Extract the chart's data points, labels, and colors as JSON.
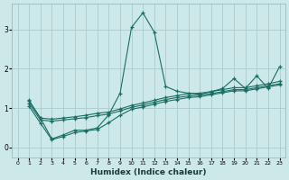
{
  "xlabel": "Humidex (Indice chaleur)",
  "bg_color": "#cce8e8",
  "line_color": "#1a6e64",
  "grid_color": "#aacccc",
  "xlim": [
    -0.5,
    23.5
  ],
  "ylim": [
    -0.25,
    3.65
  ],
  "xticks": [
    0,
    1,
    2,
    3,
    4,
    5,
    6,
    7,
    8,
    9,
    10,
    11,
    12,
    13,
    14,
    15,
    16,
    17,
    18,
    19,
    20,
    21,
    22,
    23
  ],
  "yticks": [
    0,
    1,
    2,
    3
  ],
  "series": [
    {
      "x": [
        1,
        2,
        3,
        4,
        5,
        6,
        7,
        8,
        9,
        10,
        11,
        12,
        13,
        14,
        15,
        16,
        17,
        18,
        19,
        20,
        21,
        22,
        23
      ],
      "y": [
        1.2,
        0.75,
        0.22,
        0.32,
        0.44,
        0.44,
        0.5,
        0.83,
        1.38,
        3.05,
        3.42,
        2.93,
        1.55,
        1.43,
        1.38,
        1.35,
        1.42,
        1.5,
        1.75,
        1.5,
        1.82,
        1.5,
        2.05
      ]
    },
    {
      "x": [
        1,
        2,
        3,
        4,
        5,
        6,
        7,
        8,
        9,
        10,
        11,
        12,
        13,
        14,
        15,
        16,
        17,
        18,
        19,
        20,
        21,
        22,
        23
      ],
      "y": [
        1.18,
        0.75,
        0.72,
        0.75,
        0.78,
        0.82,
        0.87,
        0.9,
        0.98,
        1.07,
        1.13,
        1.2,
        1.27,
        1.32,
        1.37,
        1.38,
        1.42,
        1.47,
        1.52,
        1.52,
        1.57,
        1.62,
        1.68
      ]
    },
    {
      "x": [
        1,
        2,
        3,
        4,
        5,
        6,
        7,
        8,
        9,
        10,
        11,
        12,
        13,
        14,
        15,
        16,
        17,
        18,
        19,
        20,
        21,
        22,
        23
      ],
      "y": [
        1.12,
        0.7,
        0.67,
        0.7,
        0.73,
        0.76,
        0.81,
        0.85,
        0.93,
        1.02,
        1.08,
        1.15,
        1.22,
        1.27,
        1.31,
        1.33,
        1.37,
        1.42,
        1.47,
        1.47,
        1.52,
        1.57,
        1.62
      ]
    },
    {
      "x": [
        1,
        2,
        3,
        4,
        5,
        6,
        7,
        8,
        9,
        10,
        11,
        12,
        13,
        14,
        15,
        16,
        17,
        18,
        19,
        20,
        21,
        22,
        23
      ],
      "y": [
        1.05,
        0.62,
        0.2,
        0.28,
        0.38,
        0.42,
        0.46,
        0.63,
        0.82,
        0.97,
        1.03,
        1.1,
        1.17,
        1.22,
        1.27,
        1.29,
        1.34,
        1.39,
        1.44,
        1.44,
        1.49,
        1.54,
        1.59
      ]
    }
  ]
}
